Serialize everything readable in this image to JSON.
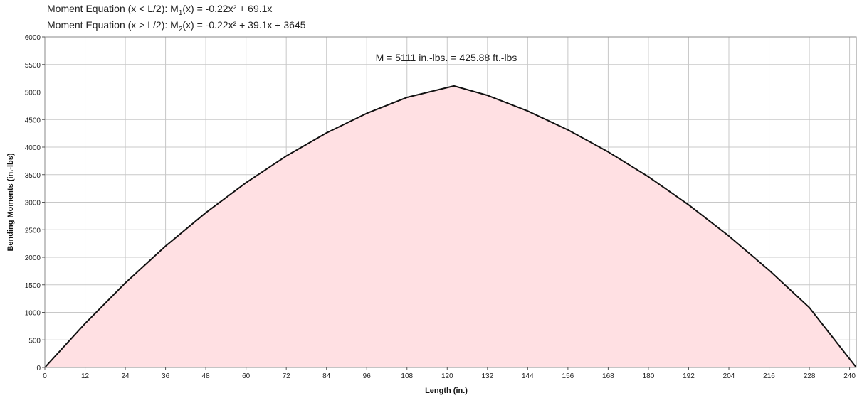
{
  "equations": {
    "eq1_prefix": "Moment Equation (x < L/2):  M",
    "eq1_sub": "1",
    "eq1_suffix": "(x) = -0.22x² + 69.1x",
    "eq2_prefix": "Moment Equation (x > L/2):  M",
    "eq2_sub": "2",
    "eq2_suffix": "(x) = -0.22x² + 39.1x + 3645"
  },
  "chart_data": {
    "type": "area",
    "xlabel": "Length (in.)",
    "ylabel": "Bending Moments (in.-lbs)",
    "xlim": [
      0,
      242
    ],
    "ylim": [
      0,
      6000
    ],
    "xticks": [
      0,
      12,
      24,
      36,
      48,
      60,
      72,
      84,
      96,
      108,
      120,
      132,
      144,
      156,
      168,
      180,
      192,
      204,
      216,
      228,
      240
    ],
    "yticks": [
      0,
      500,
      1000,
      1500,
      2000,
      2500,
      3000,
      3500,
      4000,
      4500,
      5000,
      5500,
      6000
    ],
    "grid": true,
    "annotation": "M = 5111 in.-lbs. = 425.88 ft.-lbs",
    "series": [
      {
        "x": [
          0,
          12,
          24,
          36,
          48,
          60,
          72,
          84,
          96,
          108,
          122,
          132,
          144,
          156,
          168,
          180,
          192,
          204,
          216,
          228,
          242
        ],
        "y": [
          0,
          797,
          1534,
          2203,
          2809,
          3354,
          3838,
          4258,
          4613,
          4903,
          5111,
          4940,
          4656,
          4313,
          3914,
          3462,
          2952,
          2386,
          1765,
          1087,
          0
        ]
      }
    ],
    "colors": {
      "fill": "#ffe0e3",
      "line": "#111111",
      "grid": "#c8c8c8"
    }
  }
}
